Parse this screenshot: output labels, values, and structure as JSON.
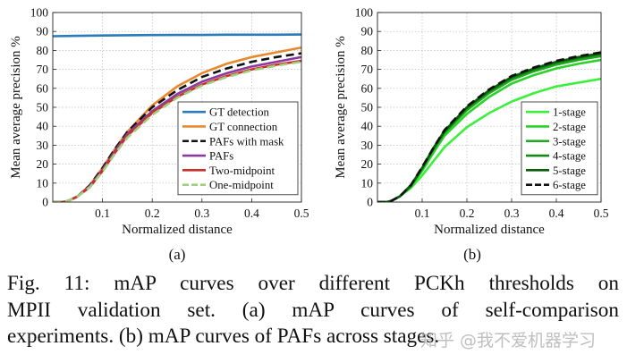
{
  "chart_data": [
    {
      "type": "line",
      "panel_label": "(a)",
      "xlabel": "Normalized distance",
      "ylabel": "Mean average precision %",
      "xlim": [
        0,
        0.5
      ],
      "ylim": [
        0,
        100
      ],
      "xticks": [
        "0.1",
        "0.2",
        "0.3",
        "0.4",
        "0.5"
      ],
      "yticks": [
        "0",
        "10",
        "20",
        "30",
        "40",
        "50",
        "60",
        "70",
        "80",
        "90",
        "100"
      ],
      "grid": true,
      "legend_position": "bottom-right",
      "series": [
        {
          "name": "GT detection",
          "color": "#2a7bb8",
          "dash": "solid",
          "x": [
            0,
            0.05,
            0.1,
            0.15,
            0.2,
            0.25,
            0.3,
            0.35,
            0.4,
            0.45,
            0.5
          ],
          "y": [
            87.5,
            87.7,
            87.9,
            88.0,
            88.1,
            88.2,
            88.2,
            88.3,
            88.3,
            88.3,
            88.4
          ]
        },
        {
          "name": "GT connection",
          "color": "#e8892e",
          "dash": "solid",
          "x": [
            0,
            0.02,
            0.03,
            0.05,
            0.075,
            0.1,
            0.125,
            0.15,
            0.2,
            0.25,
            0.3,
            0.35,
            0.4,
            0.45,
            0.5
          ],
          "y": [
            0,
            0,
            0.5,
            3,
            9,
            18,
            28,
            37,
            51,
            61,
            68,
            73,
            76.5,
            79,
            81.5
          ]
        },
        {
          "name": "PAFs with mask",
          "color": "#111111",
          "dash": "9,5",
          "x": [
            0,
            0.02,
            0.03,
            0.05,
            0.075,
            0.1,
            0.125,
            0.15,
            0.2,
            0.25,
            0.3,
            0.35,
            0.4,
            0.45,
            0.5
          ],
          "y": [
            0,
            0,
            0.5,
            3,
            9,
            18,
            28,
            37,
            50,
            59,
            66,
            70.5,
            74,
            76.5,
            78.5
          ]
        },
        {
          "name": "PAFs",
          "color": "#8b3b9e",
          "dash": "solid",
          "x": [
            0,
            0.02,
            0.03,
            0.05,
            0.075,
            0.1,
            0.125,
            0.15,
            0.2,
            0.25,
            0.3,
            0.35,
            0.4,
            0.45,
            0.5
          ],
          "y": [
            0,
            0,
            0.5,
            3,
            8.5,
            17,
            27,
            36,
            48,
            57,
            63.5,
            68,
            71.5,
            74,
            76.5
          ]
        },
        {
          "name": "Two-midpoint",
          "color": "#c8312b",
          "dash": "solid",
          "x": [
            0,
            0.02,
            0.03,
            0.05,
            0.075,
            0.1,
            0.125,
            0.15,
            0.2,
            0.25,
            0.3,
            0.35,
            0.4,
            0.45,
            0.5
          ],
          "y": [
            0,
            0,
            0.5,
            3,
            8,
            16.5,
            26,
            35,
            47,
            55.5,
            62,
            66.5,
            70,
            72.5,
            74.5
          ]
        },
        {
          "name": "One-midpoint",
          "color": "#9fcf7a",
          "dash": "9,5",
          "x": [
            0,
            0.02,
            0.03,
            0.05,
            0.075,
            0.1,
            0.125,
            0.15,
            0.2,
            0.25,
            0.3,
            0.35,
            0.4,
            0.45,
            0.5
          ],
          "y": [
            0,
            0,
            0.5,
            3,
            8,
            16,
            25.5,
            34,
            46,
            55,
            61.5,
            66,
            69.5,
            72,
            74
          ]
        }
      ]
    },
    {
      "type": "line",
      "panel_label": "(b)",
      "xlabel": "Normalized distance",
      "ylabel": "Mean average precision %",
      "xlim": [
        0,
        0.5
      ],
      "ylim": [
        0,
        100
      ],
      "xticks": [
        "0.1",
        "0.2",
        "0.3",
        "0.4",
        "0.5"
      ],
      "yticks": [
        "0",
        "10",
        "20",
        "30",
        "40",
        "50",
        "60",
        "70",
        "80",
        "90",
        "100"
      ],
      "grid": true,
      "legend_position": "bottom-right",
      "series": [
        {
          "name": "1-stage",
          "color": "#3cef3c",
          "dash": "solid",
          "x": [
            0,
            0.02,
            0.03,
            0.05,
            0.075,
            0.1,
            0.125,
            0.15,
            0.2,
            0.25,
            0.3,
            0.35,
            0.4,
            0.45,
            0.5
          ],
          "y": [
            0,
            0,
            0.5,
            3,
            7.5,
            14,
            21.5,
            29,
            39.5,
            47,
            53,
            57.5,
            61,
            63,
            65
          ]
        },
        {
          "name": "2-stage",
          "color": "#2ad22a",
          "dash": "solid",
          "x": [
            0,
            0.02,
            0.03,
            0.05,
            0.075,
            0.1,
            0.125,
            0.15,
            0.2,
            0.25,
            0.3,
            0.35,
            0.4,
            0.45,
            0.5
          ],
          "y": [
            0,
            0,
            0.5,
            3,
            8,
            16.5,
            26,
            35,
            46.5,
            55.5,
            62.5,
            67,
            70.5,
            73,
            75
          ]
        },
        {
          "name": "3-stage",
          "color": "#1eaa1e",
          "dash": "solid",
          "x": [
            0,
            0.02,
            0.03,
            0.05,
            0.075,
            0.1,
            0.125,
            0.15,
            0.2,
            0.25,
            0.3,
            0.35,
            0.4,
            0.45,
            0.5
          ],
          "y": [
            0,
            0,
            0.5,
            3,
            8.5,
            17.5,
            27.5,
            36.5,
            48.5,
            57.5,
            64.5,
            69,
            72.5,
            75,
            77
          ]
        },
        {
          "name": "4-stage",
          "color": "#138a13",
          "dash": "solid",
          "x": [
            0,
            0.02,
            0.03,
            0.05,
            0.075,
            0.1,
            0.125,
            0.15,
            0.2,
            0.25,
            0.3,
            0.35,
            0.4,
            0.45,
            0.5
          ],
          "y": [
            0,
            0,
            0.5,
            3,
            8.5,
            18,
            28,
            37,
            49.5,
            58.5,
            65.5,
            70,
            73.5,
            76,
            78
          ]
        },
        {
          "name": "5-stage",
          "color": "#0a5c0a",
          "dash": "solid",
          "x": [
            0,
            0.02,
            0.03,
            0.05,
            0.075,
            0.1,
            0.125,
            0.15,
            0.2,
            0.25,
            0.3,
            0.35,
            0.4,
            0.45,
            0.5
          ],
          "y": [
            0,
            0,
            0.5,
            3,
            9,
            18,
            28.5,
            37.5,
            50,
            59,
            66,
            70.5,
            74,
            76.5,
            78.5
          ]
        },
        {
          "name": "6-stage",
          "color": "#111111",
          "dash": "9,5",
          "x": [
            0,
            0.02,
            0.03,
            0.05,
            0.075,
            0.1,
            0.125,
            0.15,
            0.2,
            0.25,
            0.3,
            0.35,
            0.4,
            0.45,
            0.5
          ],
          "y": [
            0,
            0,
            0.5,
            3,
            9,
            18.5,
            28.5,
            38,
            50.5,
            59.5,
            66.5,
            71,
            74.5,
            77,
            79
          ]
        }
      ]
    }
  ],
  "caption": {
    "lines": [
      "Fig. 11: mAP curves over different PCKh thresholds on",
      "MPII validation set. (a) mAP curves of self-comparison",
      "experiments. (b) mAP curves of PAFs across stages."
    ]
  },
  "watermark": "知乎 @我不爱机器学习"
}
